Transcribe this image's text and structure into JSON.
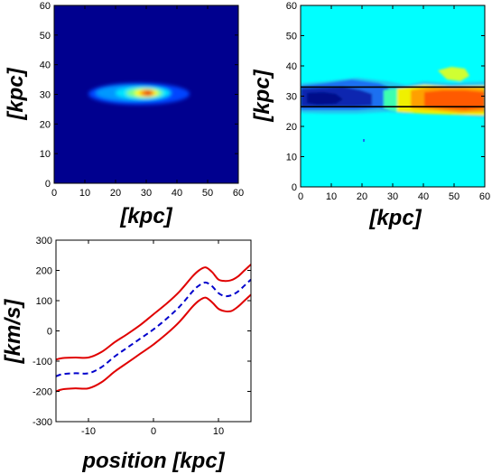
{
  "chart_data": [
    {
      "type": "heatmap",
      "colormap": "jet",
      "description_of_field": "Central blob: peak red at center, surrounded by yellow/cyan, on dark blue background",
      "xlim": [
        0,
        60
      ],
      "ylim": [
        0,
        60
      ],
      "xticks": [
        "0",
        "10",
        "20",
        "30",
        "40",
        "50",
        "60"
      ],
      "yticks": [
        "0",
        "10",
        "20",
        "30",
        "40",
        "50",
        "60"
      ],
      "xlabel": "[kpc]",
      "ylabel": "[kpc]",
      "peak": {
        "x": 31,
        "y": 30
      },
      "background_color": "#00008f"
    },
    {
      "type": "heatmap",
      "colormap": "jet",
      "xlim": [
        0,
        60
      ],
      "ylim": [
        0,
        60
      ],
      "xticks": [
        "0",
        "10",
        "20",
        "30",
        "40",
        "50",
        "60"
      ],
      "yticks": [
        "0",
        "10",
        "20",
        "30",
        "40",
        "50",
        "60"
      ],
      "xlabel": "[kpc]",
      "ylabel": "[kpc]",
      "background_color": "#00ffff",
      "slit_lines_y": [
        33,
        26.5
      ]
    },
    {
      "type": "line",
      "xlim": [
        -15,
        15
      ],
      "ylim": [
        -300,
        300
      ],
      "xticks": [
        "-10",
        "0",
        "10"
      ],
      "yticks": [
        "-300",
        "-200",
        "-100",
        "0",
        "100",
        "200",
        "300"
      ],
      "xlabel": "position [kpc]",
      "ylabel": "[km/s]",
      "x": [
        -15,
        -14,
        -12,
        -10,
        -8,
        -6,
        -4,
        -2,
        0,
        2,
        4,
        6,
        7,
        8,
        9,
        10,
        11,
        12,
        13,
        14,
        15
      ],
      "series": [
        {
          "style": "dashed",
          "color": "#0000cc",
          "values": [
            -150,
            -143,
            -140,
            -140,
            -120,
            -85,
            -55,
            -25,
            5,
            40,
            80,
            130,
            150,
            160,
            148,
            125,
            115,
            118,
            130,
            150,
            170
          ]
        },
        {
          "style": "solid",
          "color": "#e00000",
          "values": [
            -95,
            -90,
            -88,
            -88,
            -70,
            -38,
            -10,
            20,
            55,
            90,
            130,
            180,
            200,
            210,
            195,
            170,
            165,
            168,
            180,
            200,
            220
          ]
        },
        {
          "style": "solid",
          "color": "#e00000",
          "values": [
            -200,
            -193,
            -190,
            -190,
            -170,
            -135,
            -105,
            -75,
            -45,
            -10,
            30,
            80,
            100,
            110,
            95,
            73,
            65,
            66,
            80,
            100,
            120
          ]
        }
      ]
    }
  ]
}
